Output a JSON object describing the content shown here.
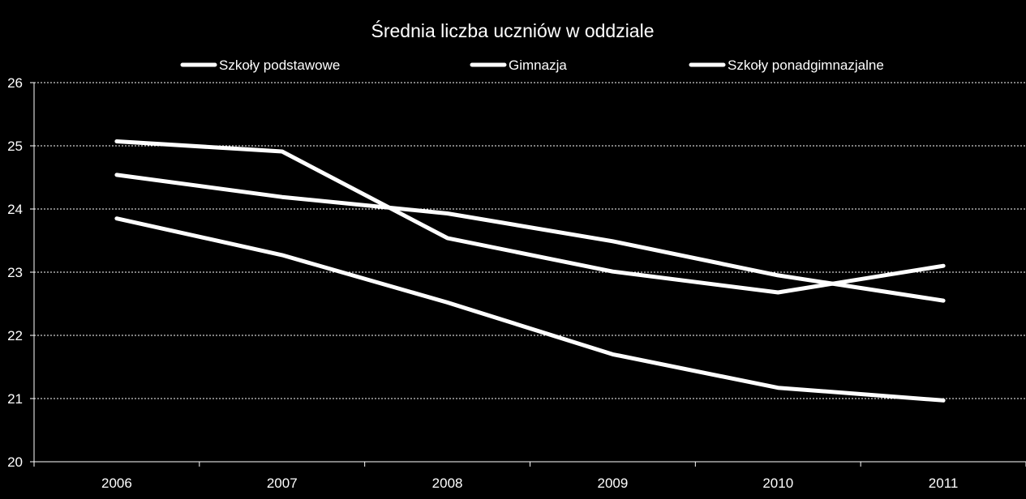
{
  "colors": {
    "background": "#000000",
    "foreground": "#ffffff",
    "gridline": "#ffffff"
  },
  "chart_data": {
    "type": "line",
    "title": "Średnia liczba uczniów w oddziale",
    "xlabel": "",
    "ylabel": "",
    "categories": [
      "2006",
      "2007",
      "2008",
      "2009",
      "2010",
      "2011"
    ],
    "ylim": [
      20,
      26
    ],
    "yticks": [
      "20",
      "21",
      "22",
      "23",
      "24",
      "25",
      "26"
    ],
    "grid": "horizontal-dashed",
    "legend_position": "top",
    "series": [
      {
        "name": "Szkoły podstawowe",
        "values": [
          23.85,
          23.27,
          22.52,
          21.7,
          21.17,
          20.97
        ]
      },
      {
        "name": "Gimnazja",
        "values": [
          25.07,
          24.91,
          23.54,
          23.01,
          22.68,
          23.1
        ]
      },
      {
        "name": "Szkoły ponadgimnazjalne",
        "values": [
          24.54,
          24.19,
          23.93,
          23.49,
          22.95,
          22.55
        ]
      }
    ]
  }
}
